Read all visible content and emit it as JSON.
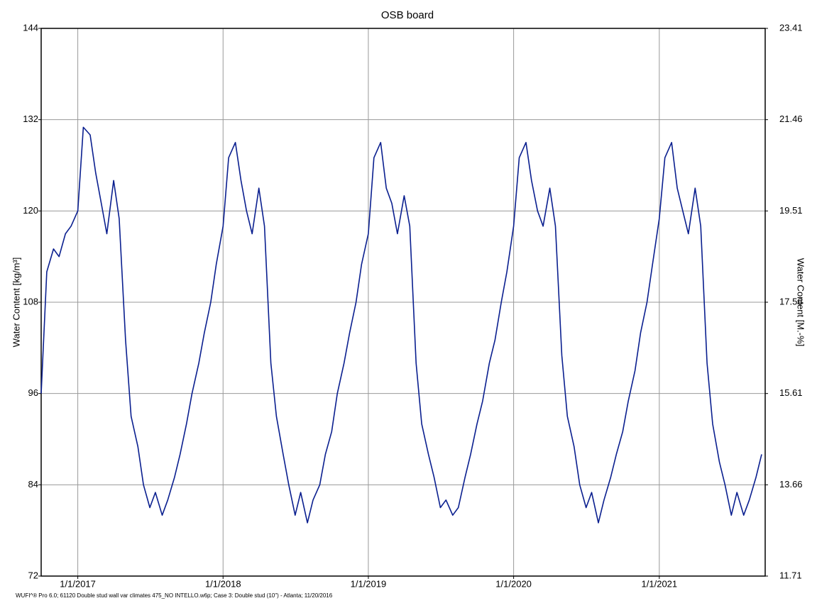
{
  "chart_data": {
    "type": "line",
    "title": "OSB board",
    "y_label": "Water Content [kg/m³]",
    "y2_label": "Water Content [M.-%]",
    "footnote": "WUFI^® Pro 6.0; 61120 Double stud wall var climates 475_NO INTELLO.w6p; Case 3: Double stud (10\") - Atlanta; 11/20/2016",
    "color": "#0a1f8f",
    "grid": true,
    "xlim": [
      "2016-10-01",
      "2021-09-24"
    ],
    "xticks": [
      {
        "value": "2017-01-01",
        "label": "1/1/2017"
      },
      {
        "value": "2018-01-01",
        "label": "1/1/2018"
      },
      {
        "value": "2019-01-01",
        "label": "1/1/2019"
      },
      {
        "value": "2020-01-01",
        "label": "1/1/2020"
      },
      {
        "value": "2021-01-01",
        "label": "1/1/2021"
      }
    ],
    "ylim": [
      72,
      144
    ],
    "yticks": [
      72,
      84,
      96,
      108,
      120,
      132,
      144
    ],
    "y2lim": [
      11.71,
      23.41
    ],
    "y2ticks": [
      11.71,
      13.66,
      15.61,
      17.56,
      19.51,
      21.46,
      23.41
    ],
    "x": [
      "2016-10-01",
      "2016-10-15",
      "2016-11-01",
      "2016-11-15",
      "2016-12-01",
      "2016-12-15",
      "2017-01-01",
      "2017-01-15",
      "2017-02-01",
      "2017-02-15",
      "2017-03-01",
      "2017-03-15",
      "2017-04-01",
      "2017-04-15",
      "2017-05-01",
      "2017-05-15",
      "2017-06-01",
      "2017-06-15",
      "2017-07-01",
      "2017-07-15",
      "2017-08-01",
      "2017-08-15",
      "2017-09-01",
      "2017-09-15",
      "2017-10-01",
      "2017-10-15",
      "2017-11-01",
      "2017-11-15",
      "2017-12-01",
      "2017-12-15",
      "2018-01-01",
      "2018-01-15",
      "2018-02-01",
      "2018-02-15",
      "2018-03-01",
      "2018-03-15",
      "2018-04-01",
      "2018-04-15",
      "2018-05-01",
      "2018-05-15",
      "2018-06-01",
      "2018-06-15",
      "2018-07-01",
      "2018-07-15",
      "2018-08-01",
      "2018-08-15",
      "2018-09-01",
      "2018-09-15",
      "2018-10-01",
      "2018-10-15",
      "2018-11-01",
      "2018-11-15",
      "2018-12-01",
      "2018-12-15",
      "2019-01-01",
      "2019-01-15",
      "2019-02-01",
      "2019-02-15",
      "2019-03-01",
      "2019-03-15",
      "2019-04-01",
      "2019-04-15",
      "2019-05-01",
      "2019-05-15",
      "2019-06-01",
      "2019-06-15",
      "2019-07-01",
      "2019-07-15",
      "2019-08-01",
      "2019-08-15",
      "2019-09-01",
      "2019-09-15",
      "2019-10-01",
      "2019-10-15",
      "2019-11-01",
      "2019-11-15",
      "2019-12-01",
      "2019-12-15",
      "2020-01-01",
      "2020-01-15",
      "2020-02-01",
      "2020-02-15",
      "2020-03-01",
      "2020-03-15",
      "2020-04-01",
      "2020-04-15",
      "2020-05-01",
      "2020-05-15",
      "2020-06-01",
      "2020-06-15",
      "2020-07-01",
      "2020-07-15",
      "2020-08-01",
      "2020-08-15",
      "2020-09-01",
      "2020-09-15",
      "2020-10-01",
      "2020-10-15",
      "2020-11-01",
      "2020-11-15",
      "2020-12-01",
      "2020-12-15",
      "2021-01-01",
      "2021-01-15",
      "2021-02-01",
      "2021-02-15",
      "2021-03-01",
      "2021-03-15",
      "2021-04-01",
      "2021-04-15",
      "2021-05-01",
      "2021-05-15",
      "2021-06-01",
      "2021-06-15",
      "2021-07-01",
      "2021-07-15",
      "2021-08-01",
      "2021-08-15",
      "2021-09-01",
      "2021-09-15"
    ],
    "values": [
      96,
      112,
      115,
      114,
      117,
      118,
      120,
      131,
      130,
      125,
      121,
      117,
      124,
      119,
      103,
      93,
      89,
      84,
      81,
      83,
      80,
      82,
      85,
      88,
      92,
      96,
      100,
      104,
      108,
      113,
      118,
      127,
      129,
      124,
      120,
      117,
      123,
      118,
      100,
      93,
      88,
      84,
      80,
      83,
      79,
      82,
      84,
      88,
      91,
      96,
      100,
      104,
      108,
      113,
      117,
      127,
      129,
      123,
      121,
      117,
      122,
      118,
      100,
      92,
      88,
      85,
      81,
      82,
      80,
      81,
      85,
      88,
      92,
      95,
      100,
      103,
      108,
      112,
      118,
      127,
      129,
      124,
      120,
      118,
      123,
      118,
      101,
      93,
      89,
      84,
      81,
      83,
      79,
      82,
      85,
      88,
      91,
      95,
      99,
      104,
      108,
      113,
      119,
      127,
      129,
      123,
      120,
      117,
      123,
      118,
      100,
      92,
      87,
      84,
      80,
      83,
      80,
      82,
      85,
      88
    ]
  }
}
